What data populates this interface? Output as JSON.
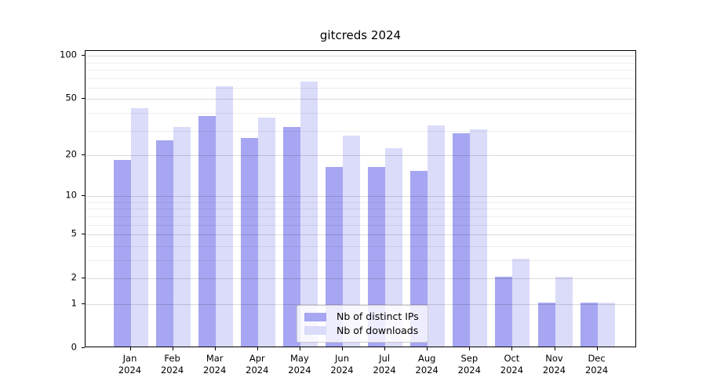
{
  "title": "gitcreds 2024",
  "chart_data": {
    "type": "bar",
    "title": "gitcreds 2024",
    "categories": [
      "Jan 2024",
      "Feb 2024",
      "Mar 2024",
      "Apr 2024",
      "May 2024",
      "Jun 2024",
      "Jul 2024",
      "Aug 2024",
      "Sep 2024",
      "Oct 2024",
      "Nov 2024",
      "Dec 2024"
    ],
    "series": [
      {
        "key": "distinct-ips",
        "name": "Nb of distinct IPs",
        "color": "#a6a6f2",
        "values": [
          18,
          25,
          37,
          26,
          31,
          16,
          16,
          15,
          28,
          2,
          1,
          1
        ]
      },
      {
        "key": "downloads",
        "name": "Nb of downloads",
        "color": "#dbdbfa",
        "values": [
          42,
          31,
          60,
          36,
          65,
          27,
          22,
          32,
          30,
          3,
          2,
          1
        ]
      }
    ],
    "xlabel": "",
    "ylabel": "",
    "y_scale": "log1p",
    "y_ticks": [
      0,
      1,
      2,
      5,
      10,
      20,
      50,
      100
    ],
    "y_minor_ticks": [
      3,
      4,
      6,
      7,
      8,
      9,
      30,
      40,
      60,
      70,
      80,
      90
    ],
    "ylim": [
      0,
      108
    ],
    "grid": "horizontal",
    "legend_position": "lower-center",
    "axis_color": "#000000",
    "background_color": "#ffffff"
  }
}
